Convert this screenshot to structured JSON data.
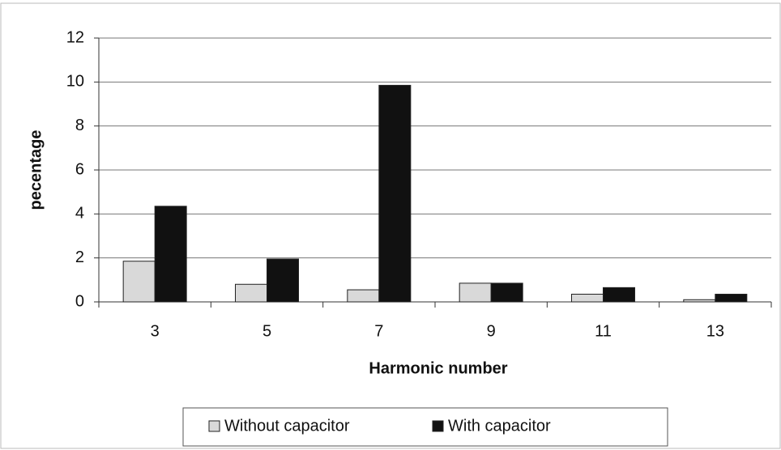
{
  "chart_data": {
    "type": "bar",
    "categories": [
      "3",
      "5",
      "7",
      "9",
      "11",
      "13"
    ],
    "series": [
      {
        "name": "Without capacitor",
        "color": "#d9d9d9",
        "values": [
          1.85,
          0.8,
          0.55,
          0.85,
          0.35,
          0.1
        ]
      },
      {
        "name": "With capacitor",
        "color": "#111111",
        "values": [
          4.35,
          1.95,
          9.85,
          0.85,
          0.65,
          0.35
        ]
      }
    ],
    "x_label": "Harmonic number",
    "y_label": "pecentage",
    "ylim": [
      0,
      12
    ],
    "yticks": [
      0,
      2,
      4,
      6,
      8,
      10,
      12
    ],
    "grid": true,
    "legend": "bottom"
  }
}
